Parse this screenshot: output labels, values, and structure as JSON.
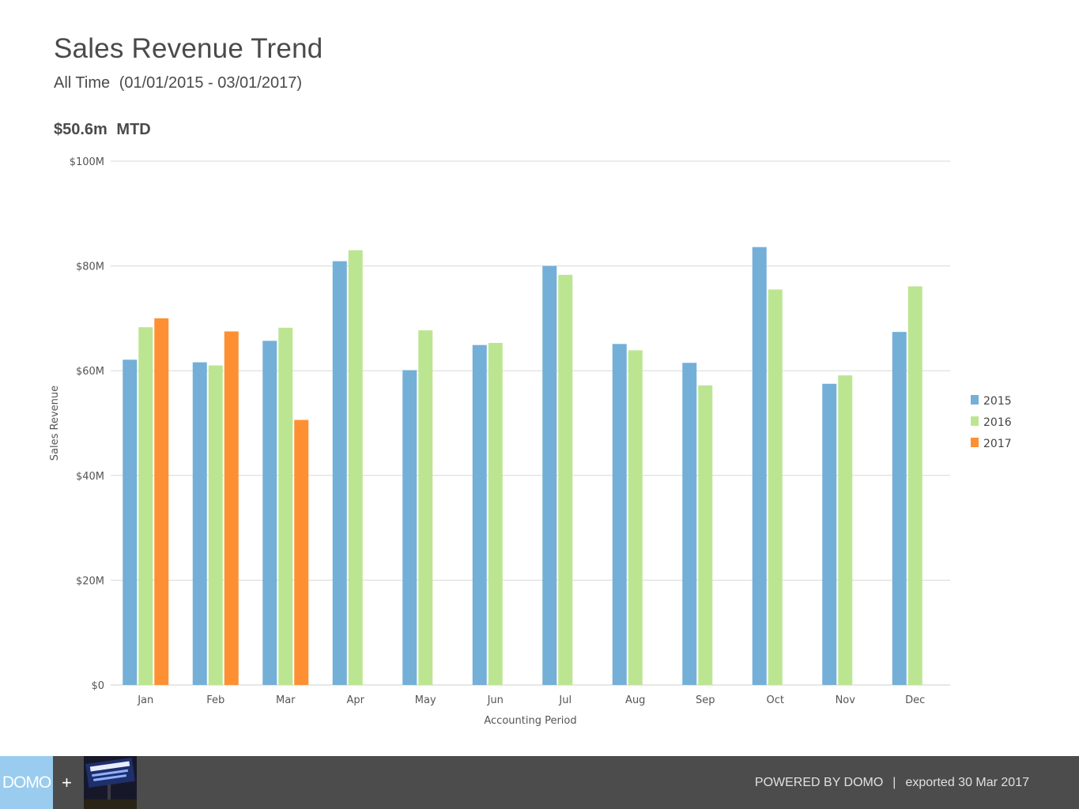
{
  "header": {
    "title": "Sales Revenue Trend",
    "subtitle_period": "All Time",
    "subtitle_range": "(01/01/2015 - 03/01/2017)"
  },
  "summary": {
    "value": "$50.6m",
    "label": "MTD"
  },
  "chart_data": {
    "type": "bar",
    "xlabel": "Accounting Period",
    "ylabel": "Sales Revenue",
    "ylim": [
      0,
      100
    ],
    "yticks": [
      {
        "value": 0,
        "label": "$0"
      },
      {
        "value": 20,
        "label": "$20M"
      },
      {
        "value": 40,
        "label": "$40M"
      },
      {
        "value": 60,
        "label": "$60M"
      },
      {
        "value": 80,
        "label": "$80M"
      },
      {
        "value": 100,
        "label": "$100M"
      }
    ],
    "grid": true,
    "legend_position": "right",
    "categories": [
      "Jan",
      "Feb",
      "Mar",
      "Apr",
      "May",
      "Jun",
      "Jul",
      "Aug",
      "Sep",
      "Oct",
      "Nov",
      "Dec"
    ],
    "series": [
      {
        "name": "2015",
        "color": "#74afd8",
        "values": [
          62.1,
          61.6,
          65.7,
          80.9,
          60.1,
          64.9,
          80.0,
          65.1,
          61.5,
          83.6,
          57.5,
          67.4
        ]
      },
      {
        "name": "2016",
        "color": "#bce592",
        "values": [
          68.3,
          61.0,
          68.2,
          83.0,
          67.7,
          65.3,
          78.3,
          63.9,
          57.2,
          75.5,
          59.1,
          76.1
        ]
      },
      {
        "name": "2017",
        "color": "#fe9033",
        "values": [
          70.0,
          67.5,
          50.6,
          null,
          null,
          null,
          null,
          null,
          null,
          null,
          null,
          null
        ]
      }
    ]
  },
  "footer": {
    "logo_text": "DOMO",
    "plus": "+",
    "partner_logo": "company-logo",
    "powered_by": "POWERED BY DOMO",
    "separator": "|",
    "exported": "exported 30 Mar 2017"
  }
}
